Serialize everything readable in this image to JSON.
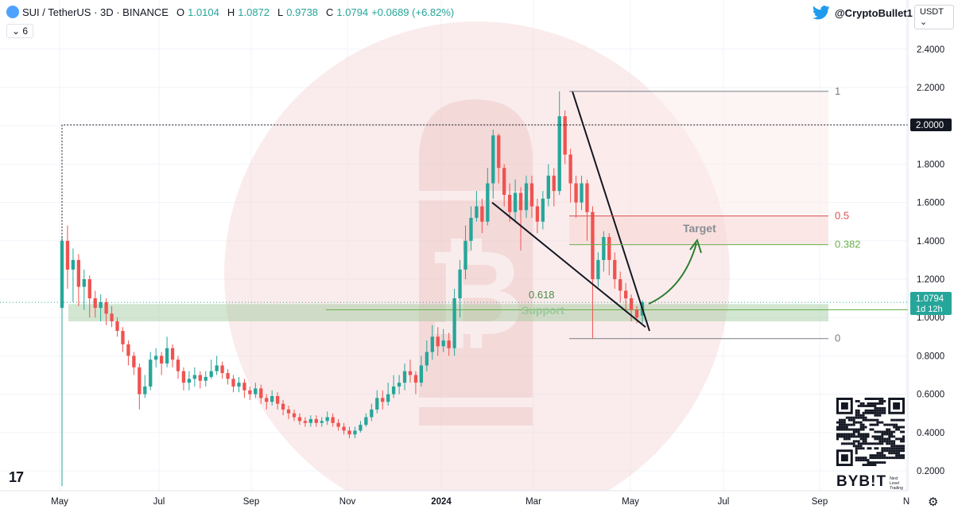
{
  "header": {
    "symbol": "SUI / TetherUS · 3D · BINANCE",
    "open_label": "O",
    "open": "1.0104",
    "high_label": "H",
    "high": "1.0872",
    "low_label": "L",
    "low": "0.9738",
    "close_label": "C",
    "close": "1.0794",
    "change": "+0.0689 (+6.82%)"
  },
  "indicator_toggle": "6",
  "twitter_handle": "@CryptoBullet1",
  "currency_selector": "USDT",
  "icons": {
    "symbol_logo": "sui-logo-icon",
    "collapse": "chevron-down-icon",
    "twitter": "twitter-bird-icon",
    "settings": "gear-icon",
    "tradingview": "tradingview-logo-icon",
    "qr": "qr-code-icon"
  },
  "tradingview_logo": "17",
  "bybit": {
    "name": "BYB!T",
    "tagline": "Next Level Trading"
  },
  "colors": {
    "up": "#26a69a",
    "down": "#ef5350",
    "support": "#9cc89a",
    "fib_05": "#d9534f",
    "fib_0382": "#6ab04c",
    "fib_neutral": "#787b86",
    "watermark": "#f5d5d5",
    "arrow": "#4caf50"
  },
  "chart_data": {
    "type": "candlestick",
    "y_scale": "linear",
    "ylim": [
      0.1,
      2.55
    ],
    "y_ticks": [
      "2.4000",
      "2.2000",
      "1.8000",
      "1.6000",
      "1.4000",
      "1.2000",
      "1.0000",
      "0.8000",
      "0.6000",
      "0.4000",
      "0.2000"
    ],
    "x_ticks": [
      "May",
      "Jul",
      "Sep",
      "Nov",
      "2024",
      "Mar",
      "May",
      "Jul",
      "Sep",
      "N"
    ],
    "price_label_level": "2.0000",
    "last_price_label": "1.0794",
    "countdown_label": "1d 12h",
    "annotations": {
      "target": "Target",
      "support": "Support",
      "fib_0618": "0.618"
    },
    "fib_levels": [
      {
        "label": "1",
        "price": 2.18
      },
      {
        "label": "0.5",
        "price": 1.53
      },
      {
        "label": "0.382",
        "price": 1.38
      },
      {
        "label": "0",
        "price": 0.89
      }
    ],
    "support_zone": [
      0.98,
      1.07
    ],
    "level_2": 2.0,
    "candles": [
      [
        1.05,
        1.4,
        1.42,
        0.12
      ],
      [
        1.4,
        1.25,
        1.48,
        1.15
      ],
      [
        1.25,
        1.3,
        1.36,
        1.08
      ],
      [
        1.3,
        1.16,
        1.33,
        1.06
      ],
      [
        1.16,
        1.2,
        1.25,
        1.04
      ],
      [
        1.2,
        1.1,
        1.22,
        1.0
      ],
      [
        1.1,
        1.05,
        1.14,
        1.0
      ],
      [
        1.05,
        1.08,
        1.12,
        0.98
      ],
      [
        1.08,
        1.02,
        1.1,
        0.96
      ],
      [
        1.02,
        0.98,
        1.06,
        0.95
      ],
      [
        0.98,
        0.93,
        1.0,
        0.9
      ],
      [
        0.93,
        0.86,
        0.95,
        0.82
      ],
      [
        0.86,
        0.8,
        0.88,
        0.75
      ],
      [
        0.8,
        0.74,
        0.82,
        0.7
      ],
      [
        0.74,
        0.6,
        0.76,
        0.52
      ],
      [
        0.6,
        0.64,
        0.7,
        0.58
      ],
      [
        0.64,
        0.78,
        0.82,
        0.62
      ],
      [
        0.78,
        0.8,
        0.84,
        0.74
      ],
      [
        0.8,
        0.76,
        0.82,
        0.7
      ],
      [
        0.76,
        0.84,
        0.9,
        0.74
      ],
      [
        0.84,
        0.78,
        0.86,
        0.74
      ],
      [
        0.78,
        0.72,
        0.8,
        0.68
      ],
      [
        0.72,
        0.66,
        0.74,
        0.62
      ],
      [
        0.66,
        0.68,
        0.72,
        0.62
      ],
      [
        0.68,
        0.7,
        0.74,
        0.64
      ],
      [
        0.7,
        0.67,
        0.72,
        0.63
      ],
      [
        0.67,
        0.69,
        0.72,
        0.64
      ],
      [
        0.69,
        0.72,
        0.78,
        0.68
      ],
      [
        0.72,
        0.75,
        0.8,
        0.7
      ],
      [
        0.75,
        0.71,
        0.77,
        0.68
      ],
      [
        0.71,
        0.68,
        0.73,
        0.65
      ],
      [
        0.68,
        0.64,
        0.7,
        0.61
      ],
      [
        0.64,
        0.66,
        0.69,
        0.61
      ],
      [
        0.66,
        0.62,
        0.68,
        0.58
      ],
      [
        0.62,
        0.6,
        0.64,
        0.57
      ],
      [
        0.6,
        0.63,
        0.66,
        0.58
      ],
      [
        0.63,
        0.58,
        0.65,
        0.55
      ],
      [
        0.58,
        0.56,
        0.6,
        0.52
      ],
      [
        0.56,
        0.59,
        0.62,
        0.54
      ],
      [
        0.59,
        0.55,
        0.61,
        0.52
      ],
      [
        0.55,
        0.52,
        0.57,
        0.49
      ],
      [
        0.52,
        0.5,
        0.54,
        0.47
      ],
      [
        0.5,
        0.48,
        0.52,
        0.46
      ],
      [
        0.48,
        0.46,
        0.5,
        0.44
      ],
      [
        0.46,
        0.45,
        0.48,
        0.43
      ],
      [
        0.45,
        0.47,
        0.49,
        0.43
      ],
      [
        0.47,
        0.45,
        0.49,
        0.43
      ],
      [
        0.45,
        0.46,
        0.48,
        0.43
      ],
      [
        0.46,
        0.48,
        0.51,
        0.44
      ],
      [
        0.48,
        0.45,
        0.5,
        0.43
      ],
      [
        0.45,
        0.43,
        0.47,
        0.41
      ],
      [
        0.43,
        0.41,
        0.45,
        0.39
      ],
      [
        0.41,
        0.39,
        0.43,
        0.37
      ],
      [
        0.39,
        0.41,
        0.43,
        0.37
      ],
      [
        0.41,
        0.44,
        0.46,
        0.4
      ],
      [
        0.44,
        0.48,
        0.5,
        0.43
      ],
      [
        0.48,
        0.52,
        0.55,
        0.46
      ],
      [
        0.52,
        0.58,
        0.62,
        0.5
      ],
      [
        0.58,
        0.56,
        0.62,
        0.52
      ],
      [
        0.56,
        0.6,
        0.66,
        0.54
      ],
      [
        0.6,
        0.64,
        0.7,
        0.58
      ],
      [
        0.64,
        0.66,
        0.7,
        0.6
      ],
      [
        0.66,
        0.72,
        0.76,
        0.62
      ],
      [
        0.72,
        0.7,
        0.78,
        0.66
      ],
      [
        0.7,
        0.66,
        0.72,
        0.6
      ],
      [
        0.66,
        0.75,
        0.8,
        0.64
      ],
      [
        0.75,
        0.82,
        0.88,
        0.72
      ],
      [
        0.82,
        0.9,
        0.96,
        0.78
      ],
      [
        0.9,
        0.85,
        0.95,
        0.8
      ],
      [
        0.85,
        0.88,
        0.94,
        0.82
      ],
      [
        0.88,
        0.84,
        0.92,
        0.8
      ],
      [
        0.84,
        1.1,
        1.15,
        0.8
      ],
      [
        1.1,
        1.25,
        1.3,
        1.0
      ],
      [
        1.25,
        1.4,
        1.48,
        1.2
      ],
      [
        1.4,
        1.52,
        1.58,
        1.35
      ],
      [
        1.52,
        1.58,
        1.66,
        1.5
      ],
      [
        1.58,
        1.5,
        1.62,
        1.44
      ],
      [
        1.5,
        1.7,
        1.78,
        1.48
      ],
      [
        1.7,
        1.95,
        1.98,
        1.62
      ],
      [
        1.95,
        1.78,
        1.96,
        1.7
      ],
      [
        1.78,
        1.64,
        1.8,
        1.58
      ],
      [
        1.64,
        1.55,
        1.7,
        1.5
      ],
      [
        1.55,
        1.65,
        1.72,
        1.5
      ],
      [
        1.65,
        1.56,
        1.68,
        1.35
      ],
      [
        1.56,
        1.7,
        1.74,
        1.52
      ],
      [
        1.7,
        1.58,
        1.74,
        1.52
      ],
      [
        1.58,
        1.5,
        1.62,
        1.44
      ],
      [
        1.5,
        1.62,
        1.66,
        1.46
      ],
      [
        1.62,
        1.74,
        1.8,
        1.58
      ],
      [
        1.74,
        1.66,
        1.78,
        1.58
      ],
      [
        1.66,
        2.05,
        2.18,
        1.64
      ],
      [
        2.05,
        1.85,
        2.08,
        1.8
      ],
      [
        1.85,
        1.7,
        1.88,
        1.6
      ],
      [
        1.7,
        1.6,
        1.74,
        1.52
      ],
      [
        1.6,
        1.7,
        1.74,
        1.56
      ],
      [
        1.7,
        1.55,
        1.72,
        1.4
      ],
      [
        1.55,
        1.2,
        1.58,
        0.89
      ],
      [
        1.2,
        1.3,
        1.34,
        1.16
      ],
      [
        1.3,
        1.42,
        1.45,
        1.24
      ],
      [
        1.42,
        1.3,
        1.44,
        1.22
      ],
      [
        1.3,
        1.2,
        1.34,
        1.15
      ],
      [
        1.2,
        1.14,
        1.24,
        1.08
      ],
      [
        1.14,
        1.1,
        1.18,
        1.04
      ],
      [
        1.1,
        1.04,
        1.12,
        0.98
      ],
      [
        1.04,
        1.0,
        1.06,
        0.97
      ],
      [
        1.01,
        1.08,
        1.09,
        0.97
      ]
    ]
  }
}
